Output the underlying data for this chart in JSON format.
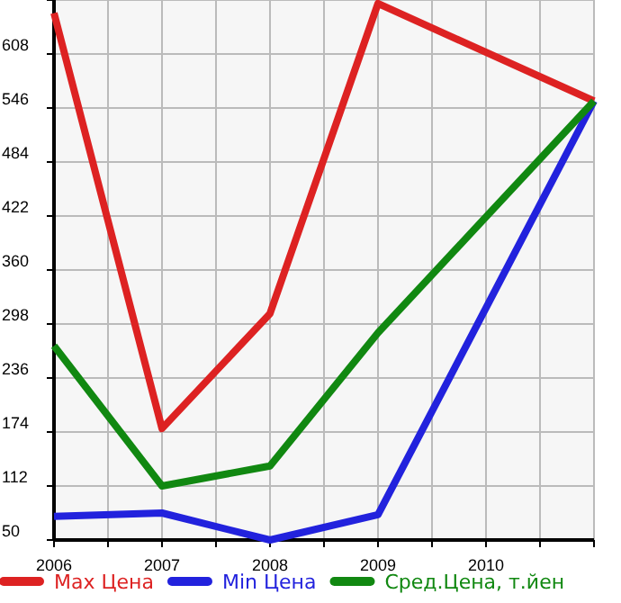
{
  "chart_data": {
    "type": "line",
    "x": [
      2006,
      2007,
      2008,
      2009,
      2011
    ],
    "series": [
      {
        "name": "Max Цена",
        "color": "#dd2222",
        "values": [
          655,
          178,
          310,
          666,
          554
        ]
      },
      {
        "name": "Min Цена",
        "color": "#2222dd",
        "values": [
          77,
          81,
          50,
          79,
          554
        ]
      },
      {
        "name": "Сред.Цена, т.йен",
        "color": "#118811",
        "values": [
          273,
          112,
          135,
          288,
          554
        ]
      }
    ],
    "xlim": [
      2006,
      2011
    ],
    "xticks": [
      2006,
      {
        "value": 2006.5,
        "label": null
      },
      2007,
      {
        "value": 2007.5,
        "label": null
      },
      2008,
      {
        "value": 2008.5,
        "label": null
      },
      2009,
      {
        "value": 2009.5,
        "label": null
      },
      2010,
      {
        "value": 2010.5,
        "label": null
      },
      {
        "value": 2011,
        "label": null
      }
    ],
    "ylim": [
      50,
      670
    ],
    "yticks": [
      50,
      112,
      174,
      236,
      298,
      360,
      422,
      484,
      546,
      608,
      {
        "value": 670,
        "label": null
      }
    ],
    "grid": true,
    "legend": "bottom",
    "marker": "none",
    "line_style": "solid"
  }
}
